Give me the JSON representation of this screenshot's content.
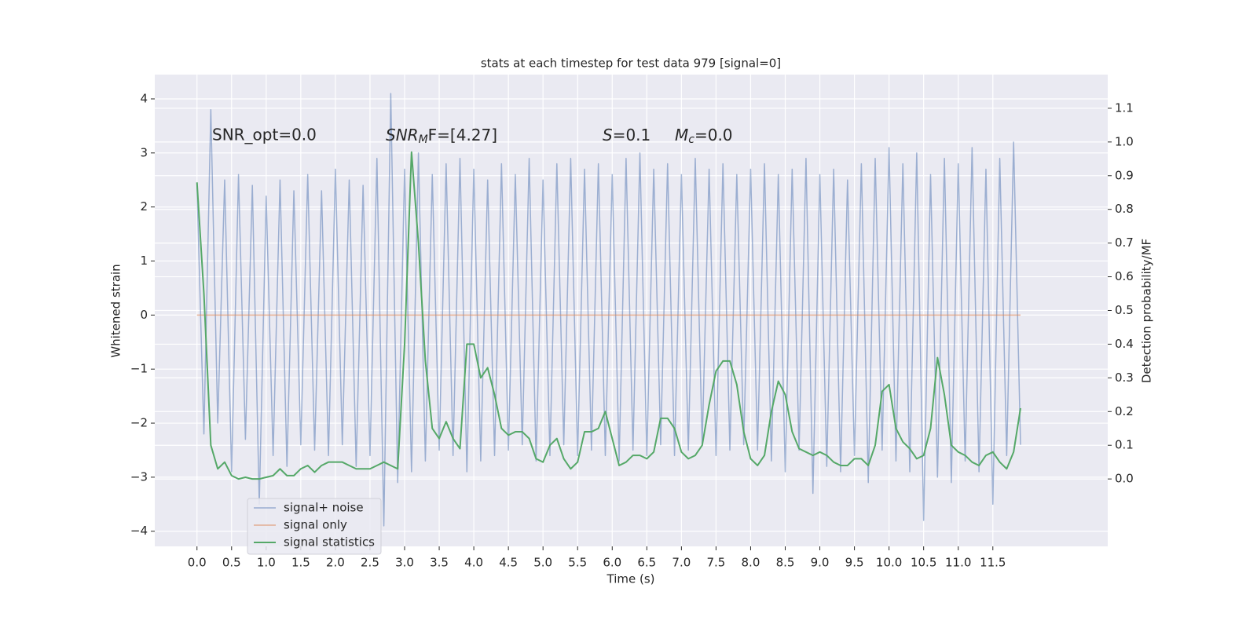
{
  "chart_data": {
    "type": "line",
    "title": "stats at each timestep for test data 979 [signal=0]",
    "xlabel": "Time (s)",
    "ylabel": "Whitened strain",
    "y2label": "Detection probability/MF",
    "annotations": [
      {
        "text": "SNR_opt=0.0"
      },
      {
        "base": "SNR",
        "sub": "M",
        "rest": "F=[4.27]"
      },
      {
        "base": "S",
        "rest": "=0.1"
      },
      {
        "base": "M",
        "sub": "c",
        "rest": "=0.0"
      }
    ],
    "x": [
      0,
      0.1,
      0.2,
      0.3,
      0.4,
      0.5,
      0.6,
      0.7,
      0.8,
      0.9,
      1.0,
      1.1,
      1.2,
      1.3,
      1.4,
      1.5,
      1.6,
      1.7,
      1.8,
      1.9,
      2.0,
      2.1,
      2.2,
      2.3,
      2.4,
      2.5,
      2.6,
      2.7,
      2.8,
      2.9,
      3.0,
      3.1,
      3.2,
      3.3,
      3.4,
      3.5,
      3.6,
      3.7,
      3.8,
      3.9,
      4.0,
      4.1,
      4.2,
      4.3,
      4.4,
      4.5,
      4.6,
      4.7,
      4.8,
      4.9,
      5.0,
      5.1,
      5.2,
      5.3,
      5.4,
      5.5,
      5.6,
      5.7,
      5.8,
      5.9,
      6.0,
      6.1,
      6.2,
      6.3,
      6.4,
      6.5,
      6.6,
      6.7,
      6.8,
      6.9,
      7.0,
      7.1,
      7.2,
      7.3,
      7.4,
      7.5,
      7.6,
      7.7,
      7.8,
      7.9,
      8.0,
      8.1,
      8.2,
      8.3,
      8.4,
      8.5,
      8.6,
      8.7,
      8.8,
      8.9,
      9.0,
      9.1,
      9.2,
      9.3,
      9.4,
      9.5,
      9.6,
      9.7,
      9.8,
      9.9,
      10.0,
      10.1,
      10.2,
      10.3,
      10.4,
      10.5,
      10.6,
      10.7,
      10.8,
      10.9,
      11.0,
      11.1,
      11.2,
      11.3,
      11.4,
      11.5,
      11.6,
      11.7,
      11.8,
      11.9
    ],
    "series": [
      {
        "name": "signal+ noise",
        "color": "#4c72b0",
        "values": [
          2.4,
          -2.2,
          3.8,
          -2.0,
          2.5,
          -2.9,
          2.6,
          -2.3,
          2.4,
          -3.5,
          2.2,
          -2.6,
          2.5,
          -2.8,
          2.3,
          -2.4,
          2.6,
          -2.5,
          2.3,
          -2.6,
          2.7,
          -2.4,
          2.5,
          -2.8,
          2.4,
          -2.6,
          2.9,
          -3.9,
          4.1,
          -3.1,
          2.7,
          -2.9,
          3.0,
          -2.7,
          2.6,
          -2.5,
          2.8,
          -2.6,
          2.9,
          -2.9,
          2.7,
          -2.7,
          2.5,
          -2.6,
          2.8,
          -2.5,
          2.6,
          -2.4,
          2.9,
          -2.7,
          2.5,
          -2.6,
          2.8,
          -2.4,
          2.9,
          -2.6,
          2.7,
          -2.5,
          2.8,
          -2.6,
          2.6,
          -2.7,
          2.9,
          -2.5,
          3.0,
          -2.6,
          2.7,
          -2.4,
          2.8,
          -2.6,
          2.6,
          -2.5,
          2.9,
          -2.4,
          2.7,
          -2.6,
          2.8,
          -2.5,
          2.6,
          -2.4,
          2.7,
          -2.5,
          2.8,
          -2.7,
          2.6,
          -2.9,
          2.7,
          -2.5,
          2.9,
          -3.3,
          2.6,
          -2.8,
          2.7,
          -2.9,
          2.5,
          -2.6,
          2.8,
          -3.1,
          2.9,
          -2.5,
          3.1,
          -2.7,
          2.8,
          -2.9,
          3.0,
          -3.8,
          2.6,
          -3.0,
          2.9,
          -3.1,
          2.8,
          -2.7,
          3.1,
          -2.9,
          2.7,
          -3.5,
          2.9,
          -2.6,
          3.2,
          -2.4
        ]
      },
      {
        "name": "signal only",
        "color": "#dd8452",
        "values": [
          0,
          0,
          0,
          0,
          0,
          0,
          0,
          0,
          0,
          0,
          0,
          0,
          0,
          0,
          0,
          0,
          0,
          0,
          0,
          0,
          0,
          0,
          0,
          0,
          0,
          0,
          0,
          0,
          0,
          0,
          0,
          0,
          0,
          0,
          0,
          0,
          0,
          0,
          0,
          0,
          0,
          0,
          0,
          0,
          0,
          0,
          0,
          0,
          0,
          0,
          0,
          0,
          0,
          0,
          0,
          0,
          0,
          0,
          0,
          0,
          0,
          0,
          0,
          0,
          0,
          0,
          0,
          0,
          0,
          0,
          0,
          0,
          0,
          0,
          0,
          0,
          0,
          0,
          0,
          0,
          0,
          0,
          0,
          0,
          0,
          0,
          0,
          0,
          0,
          0,
          0,
          0,
          0,
          0,
          0,
          0,
          0,
          0,
          0,
          0,
          0,
          0,
          0,
          0,
          0,
          0,
          0,
          0,
          0,
          0,
          0,
          0,
          0,
          0,
          0,
          0,
          0,
          0,
          0,
          0
        ]
      },
      {
        "name": "signal statistics",
        "color": "#55a868",
        "axis": "y2",
        "values": [
          0.88,
          0.55,
          0.1,
          0.03,
          0.05,
          0.01,
          0,
          0.005,
          0,
          0,
          0.005,
          0.01,
          0.03,
          0.01,
          0.01,
          0.03,
          0.04,
          0.02,
          0.04,
          0.05,
          0.05,
          0.05,
          0.04,
          0.03,
          0.03,
          0.03,
          0.04,
          0.05,
          0.04,
          0.03,
          0.4,
          0.97,
          0.7,
          0.35,
          0.15,
          0.12,
          0.17,
          0.12,
          0.09,
          0.4,
          0.4,
          0.3,
          0.33,
          0.25,
          0.15,
          0.13,
          0.14,
          0.14,
          0.12,
          0.06,
          0.05,
          0.1,
          0.12,
          0.06,
          0.03,
          0.05,
          0.14,
          0.14,
          0.15,
          0.2,
          0.12,
          0.04,
          0.05,
          0.07,
          0.07,
          0.06,
          0.08,
          0.18,
          0.18,
          0.15,
          0.08,
          0.06,
          0.07,
          0.1,
          0.22,
          0.32,
          0.35,
          0.35,
          0.28,
          0.14,
          0.06,
          0.04,
          0.07,
          0.2,
          0.29,
          0.25,
          0.14,
          0.09,
          0.08,
          0.07,
          0.08,
          0.07,
          0.05,
          0.04,
          0.04,
          0.06,
          0.06,
          0.04,
          0.1,
          0.26,
          0.28,
          0.15,
          0.11,
          0.09,
          0.06,
          0.07,
          0.15,
          0.36,
          0.25,
          0.1,
          0.08,
          0.07,
          0.05,
          0.04,
          0.07,
          0.08,
          0.05,
          0.03,
          0.08,
          0.21
        ]
      }
    ],
    "xlim": [
      -0.61,
      13.16
    ],
    "xticks": [
      {
        "value": 0,
        "label": "0.0"
      },
      0.5,
      {
        "value": 1,
        "label": "1.0"
      },
      1.5,
      {
        "value": 2,
        "label": "2.0"
      },
      2.5,
      {
        "value": 3,
        "label": "3.0"
      },
      3.5,
      {
        "value": 4,
        "label": "4.0"
      },
      4.5,
      {
        "value": 5,
        "label": "5.0"
      },
      5.5,
      {
        "value": 6,
        "label": "6.0"
      },
      6.5,
      {
        "value": 7,
        "label": "7.0"
      },
      7.5,
      {
        "value": 8,
        "label": "8.0"
      },
      8.5,
      {
        "value": 9,
        "label": "9.0"
      },
      9.5,
      {
        "value": 10,
        "label": "10.0"
      },
      10.5,
      {
        "value": 11,
        "label": "11.0"
      },
      11.5
    ],
    "ylim": [
      -4.28,
      4.45
    ],
    "yticks": [
      {
        "value": -4,
        "label": "−4"
      },
      {
        "value": -3,
        "label": "−3"
      },
      {
        "value": -2,
        "label": "−2"
      },
      {
        "value": -1,
        "label": "−1"
      },
      0,
      1,
      2,
      3,
      4
    ],
    "y2lim": [
      -0.2,
      1.2
    ],
    "y2ticks": [
      {
        "value": 0,
        "label": "0.0"
      },
      0.1,
      0.2,
      0.3,
      0.4,
      0.5,
      0.6,
      0.7,
      0.8,
      0.9,
      {
        "value": 1,
        "label": "1.0"
      },
      1.1
    ],
    "grid": true,
    "legend": "lower left"
  }
}
